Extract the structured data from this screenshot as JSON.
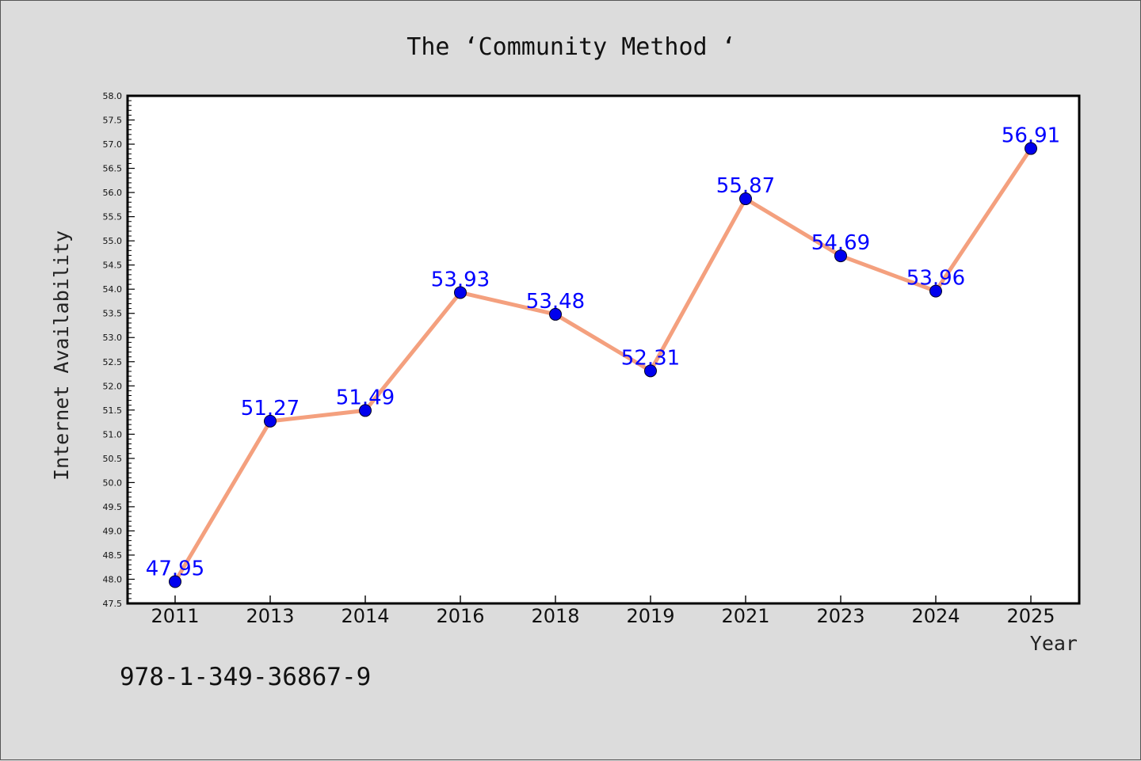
{
  "chart_data": {
    "type": "line",
    "title": "The  ‘Community Method ‘",
    "xlabel": "Year",
    "ylabel": "Internet Availability",
    "categories": [
      "2011",
      "2013",
      "2014",
      "2016",
      "2018",
      "2019",
      "2021",
      "2023",
      "2024",
      "2025"
    ],
    "series": [
      {
        "values": [
          47.95,
          51.27,
          51.49,
          53.93,
          53.48,
          52.31,
          55.87,
          54.69,
          53.96,
          56.91
        ]
      }
    ],
    "data_labels": [
      "47.95",
      "51.27",
      "51.49",
      "53.93",
      "53.48",
      "52.31",
      "55.87",
      "54.69",
      "53.96",
      "56.91"
    ],
    "ylim": [
      47.5,
      58.0
    ],
    "yticks": [
      "47.5",
      "48.0",
      "48.5",
      "49.0",
      "49.5",
      "50.0",
      "50.5",
      "51.0",
      "51.5",
      "52.0",
      "52.5",
      "53.0",
      "53.5",
      "54.0",
      "54.5",
      "55.0",
      "55.5",
      "56.0",
      "56.5",
      "57.0",
      "57.5",
      "58.0"
    ],
    "grid": false,
    "legend": "none",
    "line_color": "#f4a07e",
    "marker_color": "#0000ee",
    "label_color": "#0000ff"
  },
  "footer": {
    "isbn": "978-1-349-36867-9"
  }
}
